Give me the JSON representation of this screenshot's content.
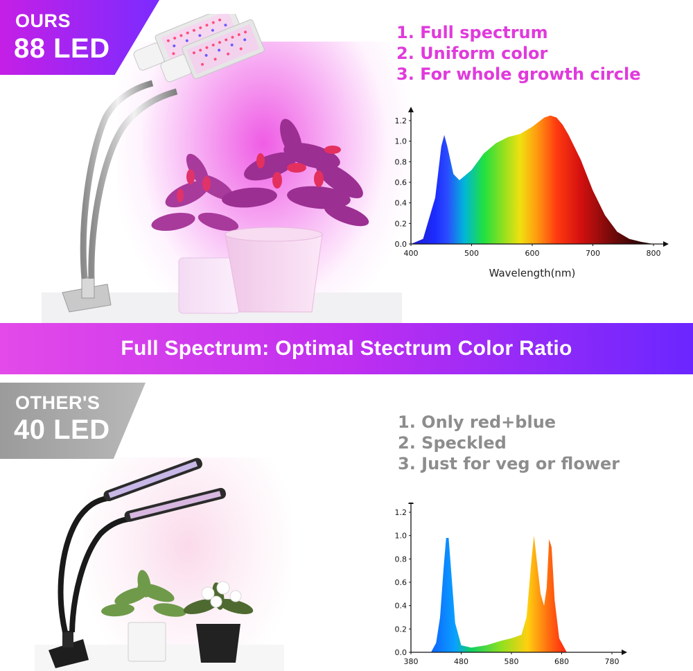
{
  "ours": {
    "badge_small": "OURS",
    "badge_big": "88 LED",
    "points": [
      "1. Full spectrum",
      "2. Uniform color",
      "3. For whole growth circle"
    ]
  },
  "banner": {
    "text": "Full Spectrum: Optimal Stectrum Color Ratio"
  },
  "others": {
    "badge_small": "OTHER'S",
    "badge_big": "40 LED",
    "points": [
      "1. Only red+blue",
      "2. Speckled",
      "3. Just for veg or flower"
    ]
  },
  "chart_data": [
    {
      "type": "area",
      "xlabel": "Wavelength(nm)",
      "ylabel": "",
      "xlim": [
        400,
        800
      ],
      "ylim": [
        0,
        1.2
      ],
      "xticks": [
        "400",
        "500",
        "600",
        "700",
        "800"
      ],
      "yticks": [
        "0.0",
        "0.2",
        "0.4",
        "0.6",
        "0.8",
        "1.0",
        "1.2"
      ],
      "x": [
        400,
        420,
        440,
        450,
        455,
        460,
        470,
        480,
        500,
        520,
        540,
        560,
        580,
        600,
        620,
        630,
        640,
        650,
        660,
        680,
        700,
        720,
        740,
        760,
        780,
        800
      ],
      "values": [
        0.0,
        0.05,
        0.45,
        0.95,
        1.06,
        0.95,
        0.68,
        0.62,
        0.72,
        0.88,
        0.98,
        1.04,
        1.07,
        1.14,
        1.23,
        1.25,
        1.23,
        1.16,
        1.06,
        0.82,
        0.52,
        0.28,
        0.12,
        0.05,
        0.02,
        0.0
      ]
    },
    {
      "type": "area",
      "xlabel": "",
      "ylabel": "",
      "xlim": [
        380,
        780
      ],
      "ylim": [
        0,
        1.2
      ],
      "xticks": [
        "380",
        "480",
        "580",
        "680",
        "780"
      ],
      "yticks": [
        "0.0",
        "0.2",
        "0.4",
        "0.6",
        "0.8",
        "1.0",
        "1.2"
      ],
      "x": [
        420,
        430,
        438,
        445,
        450,
        455,
        460,
        468,
        480,
        500,
        530,
        560,
        580,
        600,
        610,
        620,
        625,
        630,
        638,
        645,
        650,
        655,
        660,
        666,
        675,
        690
      ],
      "values": [
        0.0,
        0.08,
        0.3,
        0.72,
        0.98,
        0.98,
        0.7,
        0.25,
        0.06,
        0.04,
        0.06,
        0.1,
        0.12,
        0.15,
        0.3,
        0.8,
        1.0,
        0.8,
        0.5,
        0.4,
        0.55,
        0.97,
        0.9,
        0.45,
        0.12,
        0.0
      ]
    }
  ]
}
